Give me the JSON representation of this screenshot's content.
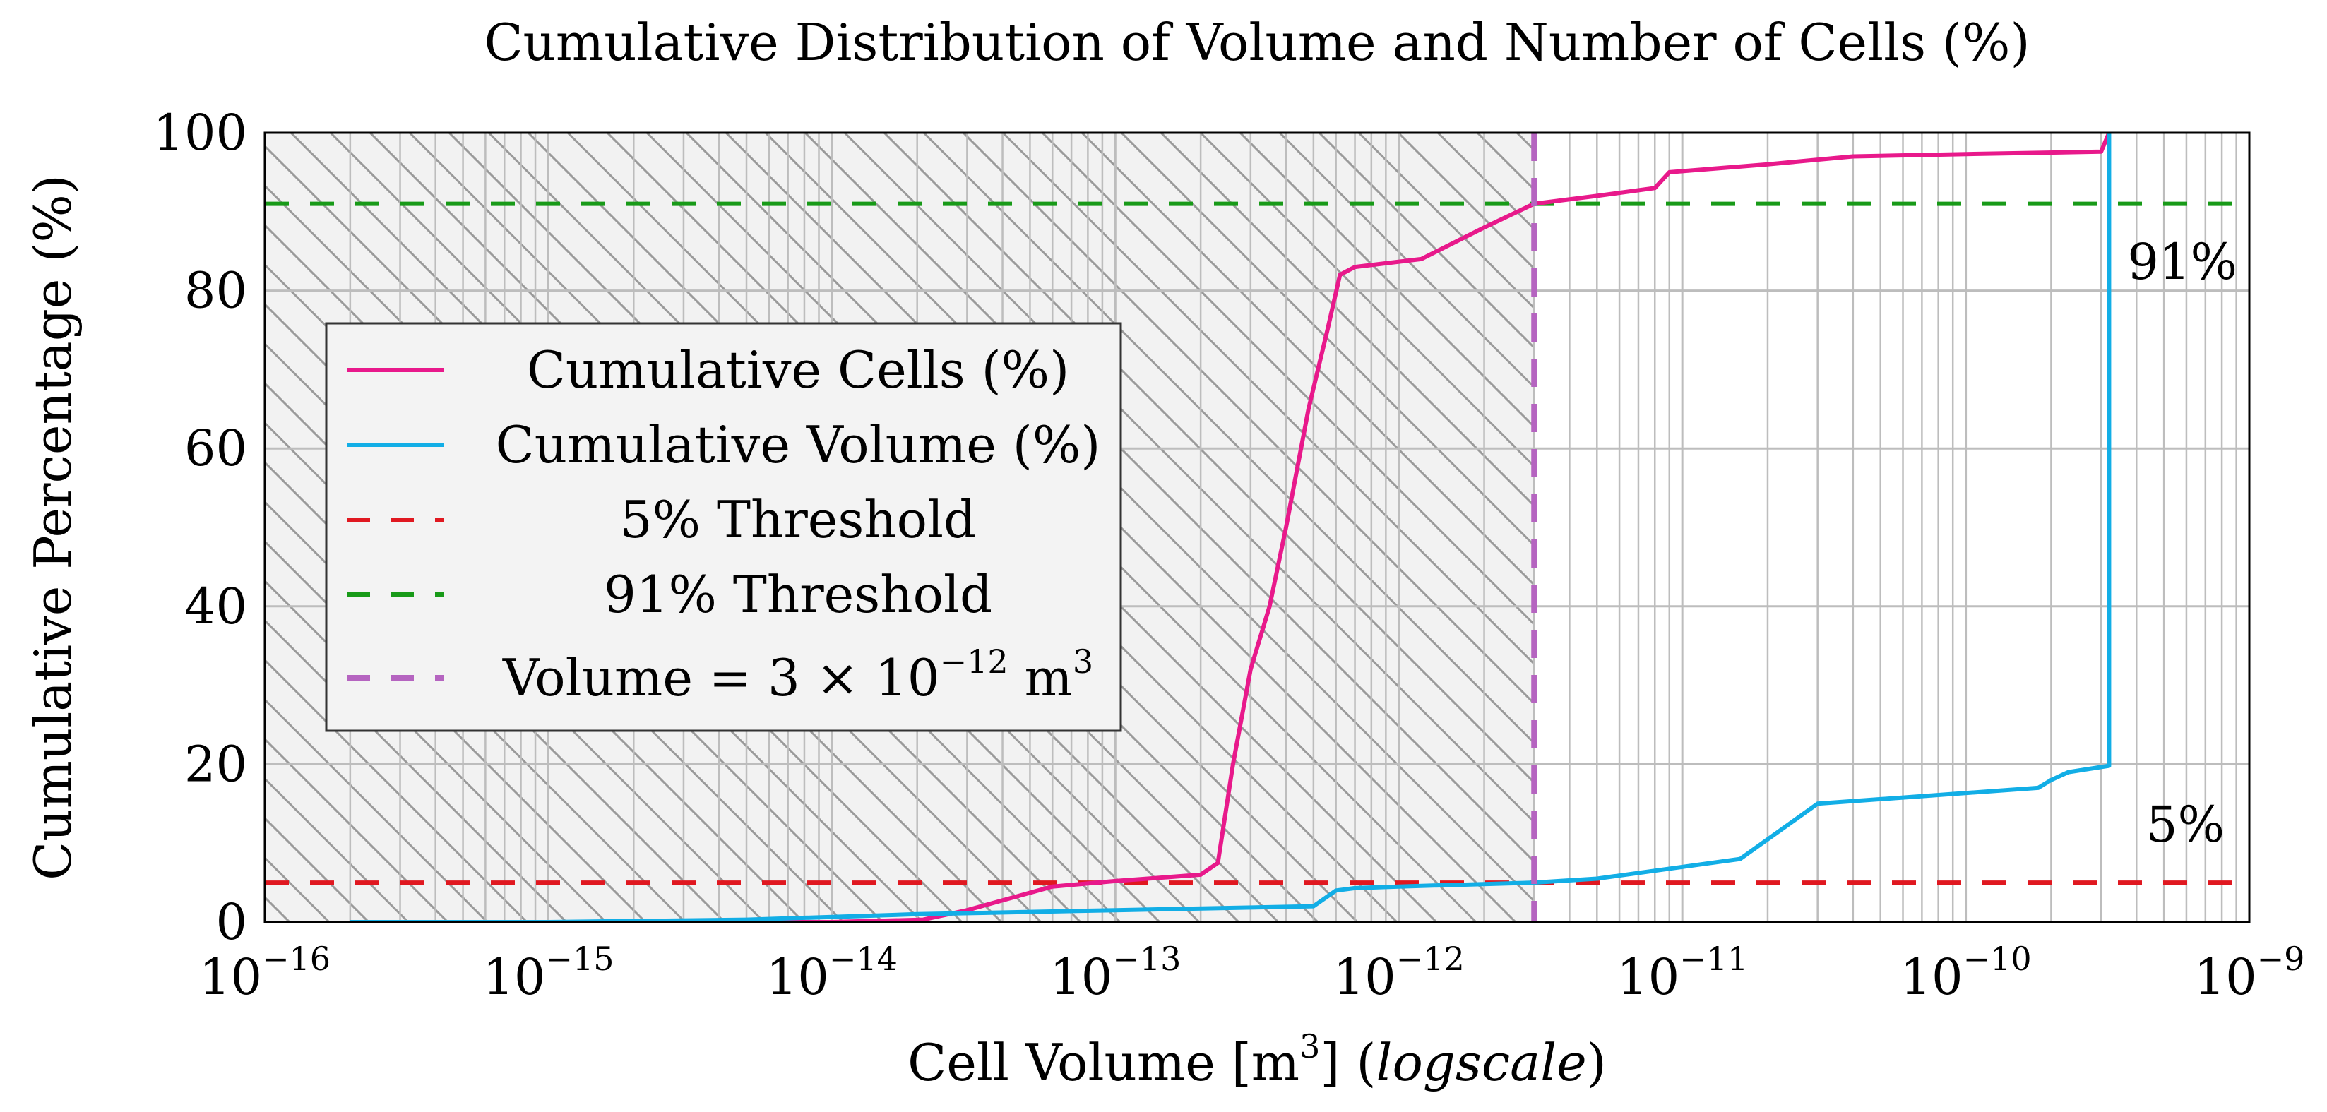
{
  "chart_data": {
    "type": "line",
    "title": "Cumulative Distribution of Volume and Number of Cells (%)",
    "xlabel": "Cell Volume [m",
    "xlabel_sup": "3",
    "xlabel_tail": "] (",
    "xlabel_italic": "logscale",
    "xlabel_close": ")",
    "ylabel": "Cumulative Percentage (%)",
    "xscale": "log",
    "xlim_exp": [
      -16,
      -9
    ],
    "ylim": [
      0,
      100
    ],
    "grid": true,
    "x_ticks": [
      {
        "base": "10",
        "exp": "−16",
        "value_exp": -16
      },
      {
        "base": "10",
        "exp": "−15",
        "value_exp": -15
      },
      {
        "base": "10",
        "exp": "−14",
        "value_exp": -14
      },
      {
        "base": "10",
        "exp": "−13",
        "value_exp": -13
      },
      {
        "base": "10",
        "exp": "−12",
        "value_exp": -12
      },
      {
        "base": "10",
        "exp": "−11",
        "value_exp": -11
      },
      {
        "base": "10",
        "exp": "−10",
        "value_exp": -10
      },
      {
        "base": "10",
        "exp": "−9",
        "value_exp": -9
      }
    ],
    "y_ticks": [
      {
        "label": "0",
        "value": 0
      },
      {
        "label": "20",
        "value": 20
      },
      {
        "label": "40",
        "value": 40
      },
      {
        "label": "60",
        "value": 60
      },
      {
        "label": "80",
        "value": 80
      },
      {
        "label": "100",
        "value": 100
      }
    ],
    "shaded_region": {
      "x_from": 1e-16,
      "x_to": 3e-12,
      "pattern": "hatch"
    },
    "series": [
      {
        "name": "Cumulative Cells (%)",
        "color": "#e8198b",
        "style": "solid",
        "points": [
          [
            2e-16,
            0
          ],
          [
            1e-15,
            0
          ],
          [
            5e-15,
            0
          ],
          [
            1e-14,
            0
          ],
          [
            2.1e-14,
            0.3
          ],
          [
            3e-14,
            1.5
          ],
          [
            6e-14,
            4.5
          ],
          [
            1e-13,
            5.2
          ],
          [
            2e-13,
            6
          ],
          [
            2.3e-13,
            7.5
          ],
          [
            2.6e-13,
            20
          ],
          [
            3e-13,
            32
          ],
          [
            3.5e-13,
            40
          ],
          [
            4e-13,
            50
          ],
          [
            4.8e-13,
            65
          ],
          [
            5.6e-13,
            75
          ],
          [
            6.2e-13,
            82
          ],
          [
            7e-13,
            83
          ],
          [
            1.2e-12,
            84
          ],
          [
            2e-12,
            88
          ],
          [
            3e-12,
            91
          ],
          [
            5e-12,
            92
          ],
          [
            8e-12,
            93
          ],
          [
            9e-12,
            95
          ],
          [
            2e-11,
            96
          ],
          [
            4e-11,
            97
          ],
          [
            1e-10,
            97.3
          ],
          [
            3e-10,
            97.6
          ],
          [
            3.2e-10,
            100
          ]
        ]
      },
      {
        "name": "Cumulative Volume (%)",
        "color": "#12aee6",
        "style": "solid",
        "points": [
          [
            2e-16,
            0
          ],
          [
            1e-15,
            0
          ],
          [
            5e-15,
            0.3
          ],
          [
            2e-14,
            1
          ],
          [
            1e-13,
            1.5
          ],
          [
            5e-13,
            2
          ],
          [
            6e-13,
            4
          ],
          [
            7e-13,
            4.3
          ],
          [
            1e-12,
            4.5
          ],
          [
            3e-12,
            5
          ],
          [
            5e-12,
            5.5
          ],
          [
            1.6e-11,
            8
          ],
          [
            3e-11,
            15
          ],
          [
            1.8e-10,
            17
          ],
          [
            2e-10,
            18
          ],
          [
            2.3e-10,
            19
          ],
          [
            3.2e-10,
            19.8
          ],
          [
            3.2e-10,
            100
          ]
        ]
      }
    ],
    "thresholds": [
      {
        "name": "5% Threshold",
        "y": 5,
        "color": "#e01820",
        "label": "5%"
      },
      {
        "name": "91% Threshold",
        "y": 91,
        "color": "#189a18",
        "label": "91%"
      }
    ],
    "vline": {
      "name_prefix": "Volume = 3 × 10",
      "name_exp": "−12",
      "name_unit": "m",
      "name_unit_sup": "3",
      "x": 3e-12,
      "color": "#b564c0"
    },
    "legend_position": "center-left"
  }
}
